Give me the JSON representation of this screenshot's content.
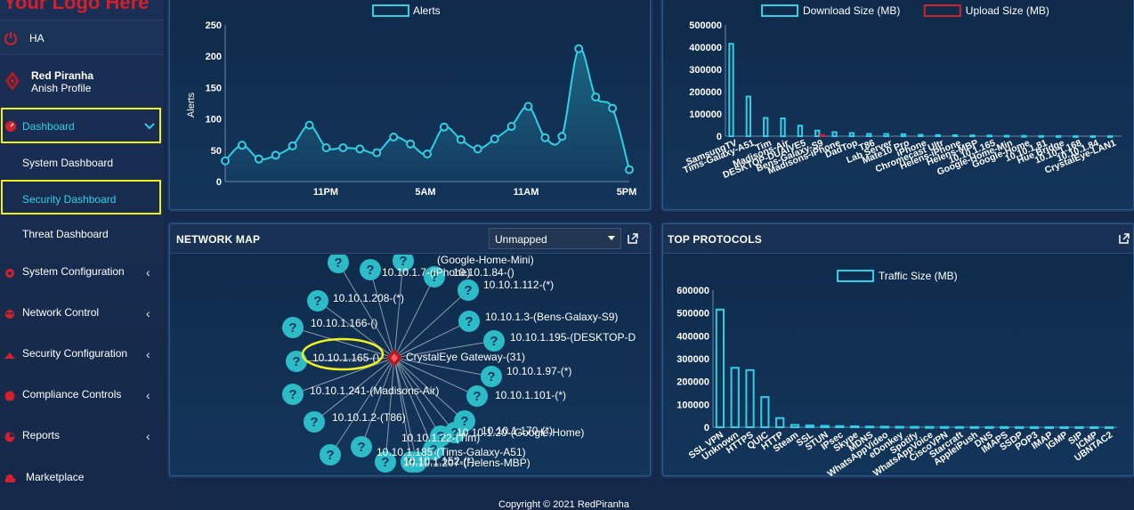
{
  "brand": {
    "logo_text": "Your Logo Here"
  },
  "sidebar": {
    "ha_label": "HA",
    "profile_name": "Red Piranha",
    "profile_sub": "Anish Profile",
    "dashboard_label": "Dashboard",
    "sub_items": [
      "System Dashboard",
      "Security Dashboard",
      "Threat Dashboard"
    ],
    "items": [
      "System Configuration",
      "Network Control",
      "Security Configuration",
      "Compliance Controls",
      "Reports",
      "Marketplace"
    ]
  },
  "alerts_chart": {
    "chart_data": {
      "type": "area",
      "legend": [
        "Alerts"
      ],
      "ylabel": "Alerts",
      "ylim": [
        0,
        250
      ],
      "yticks": [
        "0",
        "50",
        "100",
        "150",
        "200",
        "250"
      ],
      "xticks": [
        "11PM",
        "5AM",
        "11AM",
        "5PM"
      ],
      "series": [
        {
          "name": "Alerts",
          "values": [
            33,
            58,
            36,
            42,
            57,
            90,
            54,
            54,
            52,
            46,
            71,
            60,
            44,
            87,
            67,
            52,
            68,
            88,
            120,
            70,
            72,
            212,
            135,
            117,
            19
          ]
        }
      ],
      "color": "#2fd0e6"
    }
  },
  "download_chart": {
    "chart_data": {
      "type": "bar",
      "legend": [
        "Download Size (MB)",
        "Upload Size (MB)"
      ],
      "ylim": [
        0,
        500000
      ],
      "yticks": [
        "0",
        "100000",
        "200000",
        "300000",
        "400000",
        "500000"
      ],
      "categories": [
        "SamsungTV",
        "Tims-Galaxy-A51",
        "Tim",
        "Madisons-Air",
        "DESKTOP-DUAIVE5",
        "Bens-Galaxy-S9",
        "Madisons-iPhone",
        "DadTop",
        "T86",
        "Lab Server",
        "Mate10 Pro",
        "iPhone",
        "Chromecast Ultr",
        "Helens-iPhone",
        "Helens-MBP",
        "10.10.1.165",
        "Google-Home-Min",
        "Google-Home",
        "10.10.1.81",
        "Hue Bridge",
        "10.10.1.168",
        "10.10.1.84",
        "CrystalEye-LAN1"
      ],
      "series": [
        {
          "name": "Download Size (MB)",
          "values": [
            415000,
            178000,
            82000,
            80000,
            47000,
            25000,
            18000,
            14000,
            10000,
            10000,
            9000,
            6000,
            5000,
            4000,
            3500,
            3000,
            2000,
            1500,
            1000,
            500,
            400,
            300,
            200
          ],
          "color": "#2fd0e6"
        },
        {
          "name": "Upload Size (MB)",
          "values": [
            0,
            0,
            0,
            0,
            0,
            5000,
            0,
            0,
            0,
            0,
            0,
            0,
            0,
            0,
            0,
            0,
            0,
            0,
            0,
            0,
            0,
            0,
            0
          ],
          "color": "#d4202a"
        }
      ]
    }
  },
  "network_map": {
    "title": "NETWORK MAP",
    "select_value": "Unmapped",
    "center_label": "CrystalEye Gateway-(31)",
    "nodes": [
      "10.10.1.112-(*)",
      "10.10.1.3-(Bens-Galaxy-S9)",
      "10.10.1.195-(DESKTOP-D",
      "10.10.1.97-(*)",
      "10.10.1.101-(*)",
      "10.10.1.170-(*)",
      "10.10.1.20-(Google-Home)",
      "10.10.1.152-(*)",
      "10.10.1.207-(Helens-MBP)",
      "10.10.1.185-(Tims-Galaxy-A51)",
      "10.10.1.22-(Tim)",
      "10.10.1.2-(T86)",
      "10.10.1.241-(Madisons-Air)",
      "10.10.1.165-()",
      "10.10.1.166-()",
      "10.10.1.208-(*)",
      "10.10.1.7-(iPhone)",
      "10.10.1.84-()"
    ],
    "partial_top_label": "(Google-Home-Mini)"
  },
  "protocols": {
    "title": "TOP PROTOCOLS",
    "chart_data": {
      "type": "bar",
      "legend": [
        "Traffic Size (MB)"
      ],
      "ylim": [
        0,
        600000
      ],
      "yticks": [
        "0",
        "100000",
        "200000",
        "300000",
        "400000",
        "500000",
        "600000"
      ],
      "categories": [
        "SSL VPN",
        "Unknown",
        "HTTPS",
        "QUIC",
        "HTTP",
        "Steam",
        "SSL",
        "STUN",
        "IPsec",
        "Skype",
        "MDNS",
        "WhatsAppVideo",
        "eDonkey",
        "Spotify",
        "WhatsAppVoice",
        "CiscoVPN",
        "Starcraft",
        "AppleiPush",
        "DNS",
        "IMAPS",
        "SSDP",
        "POP3",
        "IMAP",
        "IGMP",
        "SIP",
        "ICMP",
        "UBNTAC2"
      ],
      "series": [
        {
          "name": "Traffic Size (MB)",
          "values": [
            515000,
            260000,
            250000,
            132000,
            40000,
            10000,
            8000,
            6000,
            5000,
            4000,
            3000,
            2500,
            2000,
            1500,
            1200,
            1000,
            800,
            700,
            600,
            500,
            400,
            300,
            250,
            200,
            150,
            100,
            50
          ],
          "color": "#2fd0e6"
        }
      ]
    }
  },
  "footer": {
    "text": "Copyright © 2021 RedPiranha"
  }
}
